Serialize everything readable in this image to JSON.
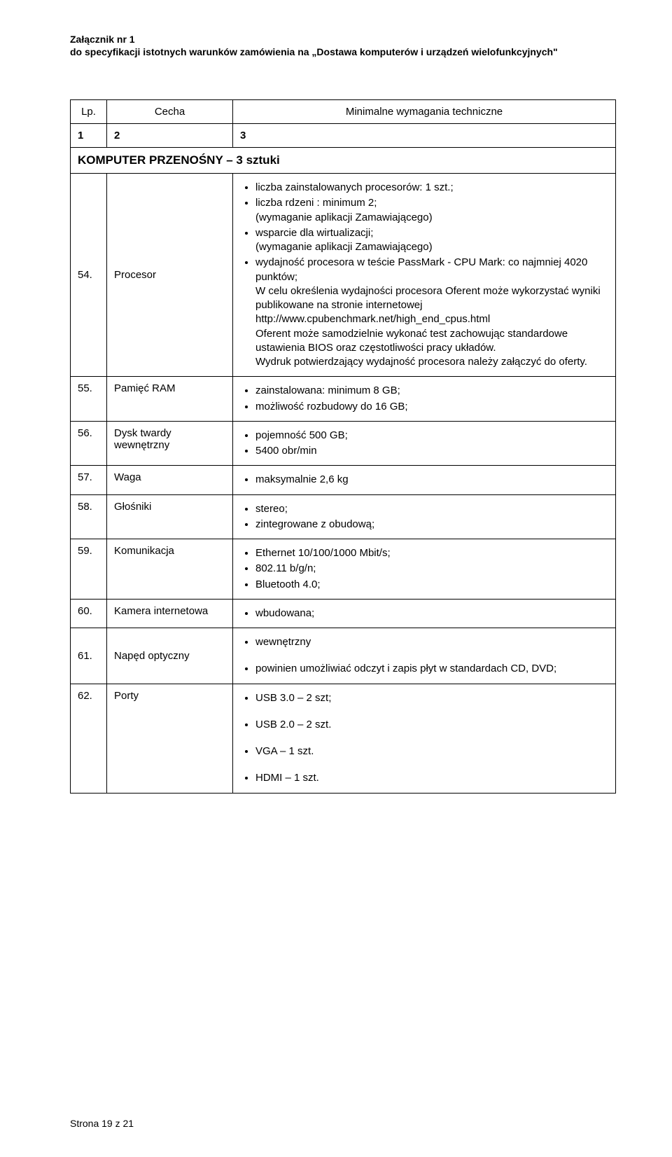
{
  "header": {
    "title": "Załącznik nr 1",
    "sub": "do specyfikacji istotnych warunków zamówienia na „Dostawa  komputerów i urządzeń wielofunkcyjnych\""
  },
  "table_header": {
    "lp": "Lp.",
    "cecha": "Cecha",
    "req": "Minimalne wymagania techniczne",
    "n1": "1",
    "n2": "2",
    "n3": "3"
  },
  "section": "KOMPUTER PRZENOŚNY – 3 sztuki",
  "rows": [
    {
      "lp": "54.",
      "cecha": "Procesor",
      "items": [
        "liczba zainstalowanych procesorów: 1 szt.;",
        "liczba rdzeni : minimum 2;\n(wymaganie aplikacji Zamawiającego)",
        "wsparcie dla wirtualizacji;\n(wymaganie aplikacji Zamawiającego)",
        "wydajność procesora w teście PassMark - CPU Mark: co najmniej 4020 punktów;\nW celu określenia wydajności procesora Oferent może wykorzystać wyniki publikowane na stronie internetowej http://www.cpubenchmark.net/high_end_cpus.html\nOferent może samodzielnie wykonać test zachowując standardowe ustawienia BIOS oraz częstotliwości pracy układów.\nWydruk potwierdzający wydajność procesora należy załączyć do oferty."
      ]
    },
    {
      "lp": "55.",
      "cecha": "Pamięć RAM",
      "items": [
        "zainstalowana: minimum 8 GB;",
        "możliwość rozbudowy do 16 GB;"
      ]
    },
    {
      "lp": "56.",
      "cecha": "Dysk twardy wewnętrzny",
      "items": [
        "pojemność 500 GB;",
        "5400 obr/min"
      ]
    },
    {
      "lp": "57.",
      "cecha": "Waga",
      "items": [
        "maksymalnie 2,6 kg"
      ]
    },
    {
      "lp": "58.",
      "cecha": "Głośniki",
      "items": [
        "stereo;",
        "zintegrowane z obudową;"
      ]
    },
    {
      "lp": "59.",
      "cecha": "Komunikacja",
      "items": [
        "Ethernet 10/100/1000 Mbit/s;",
        "802.11 b/g/n;",
        "Bluetooth 4.0;"
      ]
    },
    {
      "lp": "60.",
      "cecha": "Kamera internetowa",
      "items": [
        "wbudowana;"
      ]
    },
    {
      "lp": "61.",
      "cecha": "Napęd optyczny",
      "items": [
        "wewnętrzny",
        "powinien umożliwiać odczyt i zapis płyt w standardach CD, DVD;"
      ],
      "gap_after_first": true
    },
    {
      "lp": "62.",
      "cecha": "Porty",
      "items": [
        "USB 3.0 – 2 szt;",
        "USB 2.0 – 2 szt.",
        "VGA – 1 szt.",
        "HDMI – 1 szt."
      ],
      "separate_items": true
    }
  ],
  "footer": "Strona 19 z 21"
}
